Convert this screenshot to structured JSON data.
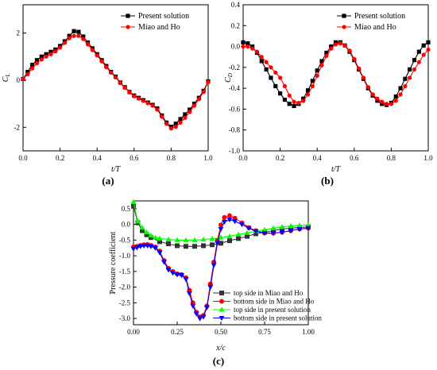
{
  "panels": {
    "a": {
      "label": "(a)"
    },
    "b": {
      "label": "(b)"
    },
    "c": {
      "label": "(c)"
    }
  },
  "chart_data": [
    {
      "id": "a",
      "type": "line",
      "title": "",
      "xlabel": "t/T",
      "ylabel": "C_L",
      "ylabel_main": "C",
      "ylabel_sub": "L",
      "xlim": [
        0,
        1
      ],
      "ylim": [
        -3,
        3.2
      ],
      "xticks": [
        0.0,
        0.2,
        0.4,
        0.6,
        0.8,
        1.0
      ],
      "xtick_labels": [
        "0.0",
        "0.2",
        "0.4",
        "0.6",
        "0.8",
        "1.0"
      ],
      "yticks": [
        -2,
        0,
        2
      ],
      "ytick_labels": [
        "-2",
        "0",
        "2"
      ],
      "grid": false,
      "legend": "top-right",
      "series": [
        {
          "name": "Present solution",
          "color": "#000000",
          "marker": "square",
          "x": [
            0.0,
            0.025,
            0.05,
            0.075,
            0.1,
            0.125,
            0.15,
            0.175,
            0.2,
            0.225,
            0.25,
            0.275,
            0.3,
            0.325,
            0.35,
            0.375,
            0.4,
            0.425,
            0.45,
            0.475,
            0.5,
            0.525,
            0.55,
            0.575,
            0.6,
            0.625,
            0.65,
            0.675,
            0.7,
            0.725,
            0.75,
            0.775,
            0.8,
            0.825,
            0.85,
            0.875,
            0.9,
            0.925,
            0.95,
            0.975,
            1.0
          ],
          "y": [
            0.05,
            0.35,
            0.65,
            0.85,
            1.0,
            1.1,
            1.2,
            1.3,
            1.45,
            1.65,
            1.88,
            2.08,
            2.05,
            1.85,
            1.6,
            1.35,
            1.1,
            0.85,
            0.6,
            0.35,
            0.15,
            -0.1,
            -0.3,
            -0.5,
            -0.65,
            -0.75,
            -0.85,
            -0.95,
            -1.05,
            -1.2,
            -1.5,
            -1.8,
            -1.98,
            -1.85,
            -1.65,
            -1.45,
            -1.25,
            -1.0,
            -0.75,
            -0.45,
            -0.05
          ]
        },
        {
          "name": "Miao and Ho",
          "color": "#ff0000",
          "marker": "circle",
          "x": [
            0.0,
            0.025,
            0.05,
            0.075,
            0.1,
            0.125,
            0.15,
            0.175,
            0.2,
            0.225,
            0.25,
            0.275,
            0.3,
            0.325,
            0.35,
            0.375,
            0.4,
            0.425,
            0.45,
            0.475,
            0.5,
            0.525,
            0.55,
            0.575,
            0.6,
            0.625,
            0.65,
            0.675,
            0.7,
            0.725,
            0.75,
            0.775,
            0.8,
            0.825,
            0.85,
            0.875,
            0.9,
            0.925,
            0.95,
            0.975,
            1.0
          ],
          "y": [
            0.05,
            0.25,
            0.5,
            0.72,
            0.88,
            1.0,
            1.1,
            1.22,
            1.38,
            1.58,
            1.78,
            1.88,
            1.88,
            1.75,
            1.52,
            1.28,
            1.05,
            0.8,
            0.55,
            0.32,
            0.12,
            -0.12,
            -0.32,
            -0.52,
            -0.68,
            -0.78,
            -0.88,
            -0.98,
            -1.08,
            -1.25,
            -1.55,
            -1.85,
            -2.05,
            -1.98,
            -1.8,
            -1.6,
            -1.35,
            -1.08,
            -0.8,
            -0.5,
            -0.08
          ]
        }
      ]
    },
    {
      "id": "b",
      "type": "line",
      "title": "",
      "xlabel": "t/T",
      "ylabel": "C_D",
      "ylabel_main": "C",
      "ylabel_sub": "D",
      "xlim": [
        0,
        1
      ],
      "ylim": [
        -1.0,
        0.4
      ],
      "xticks": [
        0.0,
        0.2,
        0.4,
        0.6,
        0.8,
        1.0
      ],
      "xtick_labels": [
        "0.0",
        "0.2",
        "0.4",
        "0.6",
        "0.8",
        "1.0"
      ],
      "yticks": [
        -1.0,
        -0.8,
        -0.6,
        -0.4,
        -0.2,
        0.0,
        0.2,
        0.4
      ],
      "ytick_labels": [
        "-1.0",
        "-0.8",
        "-0.6",
        "-0.4",
        "-0.2",
        "0.0",
        "0.2",
        "0.4"
      ],
      "grid": false,
      "legend": "top-right",
      "series": [
        {
          "name": "Present solution",
          "color": "#000000",
          "marker": "square",
          "x": [
            0.0,
            0.025,
            0.05,
            0.075,
            0.1,
            0.125,
            0.15,
            0.175,
            0.2,
            0.225,
            0.25,
            0.275,
            0.3,
            0.325,
            0.35,
            0.375,
            0.4,
            0.425,
            0.45,
            0.475,
            0.5,
            0.525,
            0.55,
            0.575,
            0.6,
            0.625,
            0.65,
            0.675,
            0.7,
            0.725,
            0.75,
            0.775,
            0.8,
            0.825,
            0.85,
            0.875,
            0.9,
            0.925,
            0.95,
            0.975,
            1.0
          ],
          "y": [
            0.04,
            0.03,
            0.0,
            -0.06,
            -0.14,
            -0.22,
            -0.3,
            -0.38,
            -0.45,
            -0.51,
            -0.55,
            -0.57,
            -0.55,
            -0.5,
            -0.42,
            -0.33,
            -0.23,
            -0.14,
            -0.06,
            0.0,
            0.04,
            0.04,
            0.01,
            -0.05,
            -0.13,
            -0.22,
            -0.31,
            -0.4,
            -0.47,
            -0.52,
            -0.55,
            -0.56,
            -0.54,
            -0.48,
            -0.4,
            -0.31,
            -0.22,
            -0.13,
            -0.05,
            0.01,
            0.04
          ]
        },
        {
          "name": "Miao and Ho",
          "color": "#ff0000",
          "marker": "circle",
          "x": [
            0.0,
            0.025,
            0.05,
            0.075,
            0.1,
            0.125,
            0.15,
            0.175,
            0.2,
            0.225,
            0.25,
            0.275,
            0.3,
            0.325,
            0.35,
            0.375,
            0.4,
            0.425,
            0.45,
            0.475,
            0.5,
            0.525,
            0.55,
            0.575,
            0.6,
            0.625,
            0.65,
            0.675,
            0.7,
            0.725,
            0.75,
            0.775,
            0.8,
            0.825,
            0.85,
            0.875,
            0.9,
            0.925,
            0.95,
            0.975,
            1.0
          ],
          "y": [
            0.0,
            0.0,
            -0.02,
            -0.05,
            -0.1,
            -0.15,
            -0.2,
            -0.25,
            -0.3,
            -0.38,
            -0.47,
            -0.53,
            -0.54,
            -0.52,
            -0.46,
            -0.38,
            -0.28,
            -0.18,
            -0.09,
            -0.02,
            0.02,
            0.03,
            0.01,
            -0.04,
            -0.12,
            -0.21,
            -0.3,
            -0.39,
            -0.46,
            -0.5,
            -0.53,
            -0.55,
            -0.55,
            -0.52,
            -0.46,
            -0.38,
            -0.3,
            -0.22,
            -0.15,
            -0.08,
            -0.03
          ]
        }
      ]
    },
    {
      "id": "c",
      "type": "line",
      "title": "",
      "xlabel": "x/c",
      "ylabel": "Pressure coefficient",
      "xlim": [
        0,
        1
      ],
      "ylim": [
        -3.2,
        0.75
      ],
      "xticks": [
        0.0,
        0.25,
        0.5,
        0.75,
        1.0
      ],
      "xtick_labels": [
        "0.00",
        "0.25",
        "0.50",
        "0.75",
        "1.00"
      ],
      "yticks": [
        -3.0,
        -2.5,
        -2.0,
        -1.5,
        -1.0,
        -0.5,
        0.0,
        0.5
      ],
      "ytick_labels": [
        "-3.0",
        "-2.5",
        "-2.0",
        "-1.5",
        "-1.0",
        "-0.5",
        "0.0",
        "0.5"
      ],
      "grid": false,
      "legend": "bottom-right",
      "series": [
        {
          "name": "top side in Miao and Ho",
          "color": "#333333",
          "marker": "square",
          "x": [
            0.0,
            0.025,
            0.05,
            0.075,
            0.1,
            0.15,
            0.2,
            0.25,
            0.3,
            0.35,
            0.4,
            0.45,
            0.5,
            0.55,
            0.6,
            0.65,
            0.7,
            0.75,
            0.8,
            0.85,
            0.9,
            0.95,
            1.0
          ],
          "y": [
            0.58,
            0.05,
            -0.2,
            -0.33,
            -0.42,
            -0.55,
            -0.62,
            -0.68,
            -0.7,
            -0.7,
            -0.68,
            -0.65,
            -0.6,
            -0.52,
            -0.45,
            -0.38,
            -0.3,
            -0.25,
            -0.2,
            -0.15,
            -0.12,
            -0.1,
            -0.08
          ]
        },
        {
          "name": "bottom side in Miao and Ho",
          "color": "#ff0000",
          "marker": "circle",
          "x": [
            0.0,
            0.02,
            0.04,
            0.06,
            0.08,
            0.1,
            0.125,
            0.15,
            0.175,
            0.2,
            0.225,
            0.25,
            0.275,
            0.3,
            0.32,
            0.34,
            0.36,
            0.38,
            0.4,
            0.42,
            0.44,
            0.46,
            0.48,
            0.5,
            0.52,
            0.55,
            0.58,
            0.62,
            0.66,
            0.7,
            0.75,
            0.8,
            0.85,
            0.9,
            0.95,
            1.0
          ],
          "y": [
            -0.72,
            -0.7,
            -0.67,
            -0.65,
            -0.64,
            -0.67,
            -0.72,
            -0.85,
            -1.15,
            -1.4,
            -1.5,
            -1.58,
            -1.6,
            -1.7,
            -2.1,
            -2.5,
            -2.8,
            -2.95,
            -2.9,
            -2.6,
            -1.9,
            -1.2,
            -0.5,
            -0.02,
            0.22,
            0.28,
            0.2,
            0.05,
            -0.1,
            -0.2,
            -0.27,
            -0.28,
            -0.25,
            -0.2,
            -0.15,
            -0.12
          ]
        },
        {
          "name": "top side in present solution",
          "color": "#00ff00",
          "marker": "triangle-up",
          "x": [
            0.0,
            0.025,
            0.05,
            0.075,
            0.1,
            0.125,
            0.15,
            0.2,
            0.25,
            0.3,
            0.35,
            0.4,
            0.45,
            0.5,
            0.55,
            0.6,
            0.65,
            0.7,
            0.75,
            0.8,
            0.85,
            0.9,
            0.95,
            1.0
          ],
          "y": [
            0.72,
            0.1,
            -0.1,
            -0.25,
            -0.35,
            -0.42,
            -0.45,
            -0.48,
            -0.5,
            -0.5,
            -0.5,
            -0.48,
            -0.46,
            -0.42,
            -0.38,
            -0.32,
            -0.27,
            -0.22,
            -0.17,
            -0.12,
            -0.08,
            -0.05,
            -0.03,
            -0.02
          ]
        },
        {
          "name": "bottom side in present solution",
          "color": "#0000ff",
          "marker": "triangle-down",
          "x": [
            0.0,
            0.02,
            0.04,
            0.06,
            0.08,
            0.1,
            0.125,
            0.15,
            0.175,
            0.2,
            0.225,
            0.25,
            0.275,
            0.3,
            0.32,
            0.34,
            0.36,
            0.38,
            0.4,
            0.42,
            0.44,
            0.46,
            0.48,
            0.5,
            0.52,
            0.55,
            0.58,
            0.62,
            0.66,
            0.7,
            0.75,
            0.8,
            0.85,
            0.9,
            0.95,
            1.0
          ],
          "y": [
            -0.78,
            -0.74,
            -0.7,
            -0.68,
            -0.68,
            -0.7,
            -0.75,
            -0.9,
            -1.2,
            -1.45,
            -1.55,
            -1.6,
            -1.62,
            -1.75,
            -2.2,
            -2.6,
            -2.85,
            -3.0,
            -2.95,
            -2.65,
            -2.0,
            -1.3,
            -0.6,
            -0.15,
            0.08,
            0.15,
            0.1,
            0.0,
            -0.12,
            -0.22,
            -0.28,
            -0.28,
            -0.25,
            -0.2,
            -0.15,
            -0.12
          ]
        }
      ]
    }
  ]
}
